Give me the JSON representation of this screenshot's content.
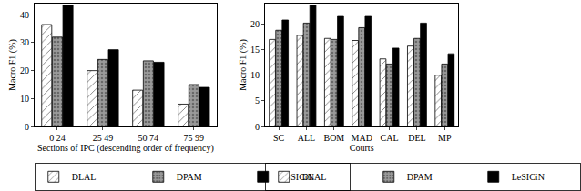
{
  "chart_data": [
    {
      "type": "bar",
      "x_label": "Sections of IPC (descending order of frequency)",
      "y_label": "Macro F1 (%)",
      "categories": [
        "0 24",
        "25 49",
        "50 74",
        "75 99"
      ],
      "series": [
        {
          "name": "DLAL",
          "color": "#ffffff",
          "values": [
            36.5,
            20,
            13,
            8
          ]
        },
        {
          "name": "DPAM",
          "color": "#9a9a9a",
          "values": [
            32,
            24,
            23.5,
            15
          ]
        },
        {
          "name": "LeSICiN",
          "color": "#000000",
          "values": [
            43.5,
            27.5,
            23,
            14
          ]
        }
      ],
      "ylim": [
        0,
        44
      ],
      "yticks": [
        0,
        10,
        20,
        30,
        40
      ],
      "grid": false,
      "legend": "bottom"
    },
    {
      "type": "bar",
      "x_label": "Courts",
      "y_label": "Macro F1 (%)",
      "categories": [
        "SC",
        "ALL",
        "BOM",
        "MAD",
        "CAL",
        "DEL",
        "MP"
      ],
      "series": [
        {
          "name": "DLAL",
          "color": "#ffffff",
          "values": [
            17,
            17.8,
            17.2,
            16.8,
            13.2,
            15.7,
            10
          ]
        },
        {
          "name": "DPAM",
          "color": "#9a9a9a",
          "values": [
            18.8,
            20.2,
            17,
            19.3,
            12.2,
            17.2,
            12.2
          ]
        },
        {
          "name": "LeSICiN",
          "color": "#000000",
          "values": [
            20.8,
            23.7,
            21.5,
            21.5,
            15.3,
            20.2,
            14.2
          ]
        }
      ],
      "ylim": [
        0,
        24
      ],
      "yticks": [
        0,
        5,
        10,
        15,
        20
      ],
      "grid": false,
      "legend": "bottom"
    }
  ]
}
